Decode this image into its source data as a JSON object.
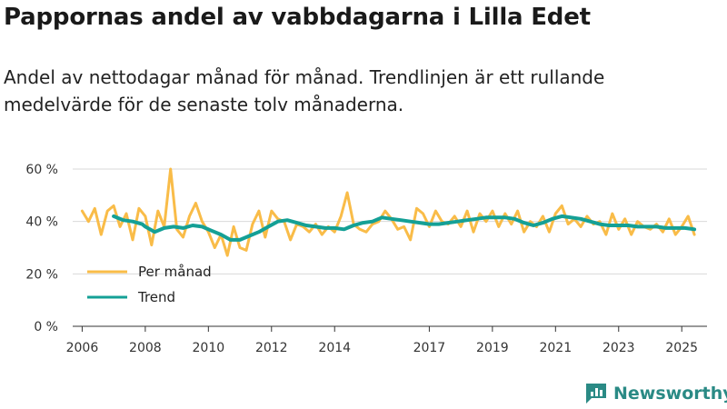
{
  "title": "Pappornas andel av vabbdagarna i Lilla Edet",
  "subtitle": "Andel av nettodagar månad för månad. Trendlinjen är ett rullande medelvärde för de senaste tolv månaderna.",
  "brand": {
    "name": "Newsworthy",
    "color": "#2a8a85"
  },
  "colors": {
    "monthly": "#f9bc48",
    "trend": "#14a096",
    "grid": "#d9d9d9",
    "axis": "#333333"
  },
  "chart_data": {
    "type": "line",
    "title": "Pappornas andel av vabbdagarna i Lilla Edet",
    "xlabel": "",
    "ylabel": "",
    "ylim": [
      0,
      60
    ],
    "xlim": [
      2005.7,
      2025.8
    ],
    "y_ticks": [
      0,
      20,
      40,
      60
    ],
    "y_tick_labels": [
      "0 %",
      "20 %",
      "40 %",
      "60 %"
    ],
    "x_ticks": [
      2006,
      2008,
      2010,
      2012,
      2014,
      2017,
      2019,
      2021,
      2023,
      2025
    ],
    "grid": true,
    "legend": {
      "position": "bottom-left",
      "entries": [
        "Per månad",
        "Trend"
      ]
    },
    "series": [
      {
        "name": "Per månad",
        "x": [
          2006.0,
          2006.2,
          2006.4,
          2006.6,
          2006.8,
          2007.0,
          2007.2,
          2007.4,
          2007.6,
          2007.8,
          2008.0,
          2008.2,
          2008.4,
          2008.6,
          2008.8,
          2009.0,
          2009.2,
          2009.4,
          2009.6,
          2009.8,
          2010.0,
          2010.2,
          2010.4,
          2010.6,
          2010.8,
          2011.0,
          2011.2,
          2011.4,
          2011.6,
          2011.8,
          2012.0,
          2012.2,
          2012.4,
          2012.6,
          2012.8,
          2013.0,
          2013.2,
          2013.4,
          2013.6,
          2013.8,
          2014.0,
          2014.2,
          2014.4,
          2014.6,
          2014.8,
          2015.0,
          2015.2,
          2015.4,
          2015.6,
          2015.8,
          2016.0,
          2016.2,
          2016.4,
          2016.6,
          2016.8,
          2017.0,
          2017.2,
          2017.4,
          2017.6,
          2017.8,
          2018.0,
          2018.2,
          2018.4,
          2018.6,
          2018.8,
          2019.0,
          2019.2,
          2019.4,
          2019.6,
          2019.8,
          2020.0,
          2020.2,
          2020.4,
          2020.6,
          2020.8,
          2021.0,
          2021.2,
          2021.4,
          2021.6,
          2021.8,
          2022.0,
          2022.2,
          2022.4,
          2022.6,
          2022.8,
          2023.0,
          2023.2,
          2023.4,
          2023.6,
          2023.8,
          2024.0,
          2024.2,
          2024.4,
          2024.6,
          2024.8,
          2025.0,
          2025.2,
          2025.4
        ],
        "values": [
          44,
          40,
          45,
          35,
          44,
          46,
          38,
          43,
          33,
          45,
          42,
          31,
          44,
          38,
          60,
          37,
          34,
          42,
          47,
          40,
          36,
          30,
          35,
          27,
          38,
          30,
          29,
          39,
          44,
          34,
          44,
          41,
          40,
          33,
          39,
          38,
          36,
          39,
          35,
          38,
          36,
          42,
          51,
          39,
          37,
          36,
          39,
          40,
          44,
          41,
          37,
          38,
          33,
          45,
          43,
          38,
          44,
          40,
          39,
          42,
          38,
          44,
          36,
          43,
          40,
          44,
          38,
          43,
          39,
          44,
          36,
          40,
          38,
          42,
          36,
          43,
          46,
          39,
          41,
          38,
          42,
          39,
          40,
          35,
          43,
          37,
          41,
          35,
          40,
          38,
          37,
          39,
          36,
          41,
          35,
          38,
          42,
          35
        ]
      },
      {
        "name": "Trend",
        "x": [
          2007.0,
          2007.3,
          2007.6,
          2007.9,
          2008.0,
          2008.3,
          2008.6,
          2008.9,
          2009.2,
          2009.5,
          2009.8,
          2010.1,
          2010.4,
          2010.7,
          2011.0,
          2011.3,
          2011.6,
          2011.9,
          2012.2,
          2012.5,
          2012.8,
          2013.1,
          2013.4,
          2013.7,
          2014.0,
          2014.3,
          2014.6,
          2014.9,
          2015.2,
          2015.5,
          2015.8,
          2016.1,
          2016.4,
          2016.7,
          2017.0,
          2017.3,
          2017.6,
          2017.9,
          2018.2,
          2018.5,
          2018.8,
          2019.1,
          2019.4,
          2019.7,
          2020.0,
          2020.3,
          2020.6,
          2020.9,
          2021.2,
          2021.5,
          2021.8,
          2022.1,
          2022.4,
          2022.7,
          2023.0,
          2023.3,
          2023.6,
          2023.9,
          2024.2,
          2024.5,
          2024.8,
          2025.1,
          2025.4
        ],
        "values": [
          42,
          40.5,
          40,
          39,
          38,
          36,
          37.5,
          38,
          37.5,
          38.5,
          38,
          36.5,
          35,
          33,
          33,
          34.5,
          36,
          38,
          40,
          40.5,
          39.5,
          38.5,
          38,
          37.5,
          37.5,
          37,
          38.5,
          39.5,
          40,
          41.5,
          41,
          40.5,
          40,
          39.5,
          39,
          39,
          39.5,
          40,
          40.5,
          41,
          41.5,
          41.5,
          41.5,
          41,
          39.5,
          38.5,
          39.5,
          41,
          42,
          41.5,
          41,
          40,
          39,
          38.5,
          38.5,
          38.5,
          38,
          38,
          38,
          37.5,
          37.5,
          37.5,
          37
        ]
      }
    ]
  }
}
